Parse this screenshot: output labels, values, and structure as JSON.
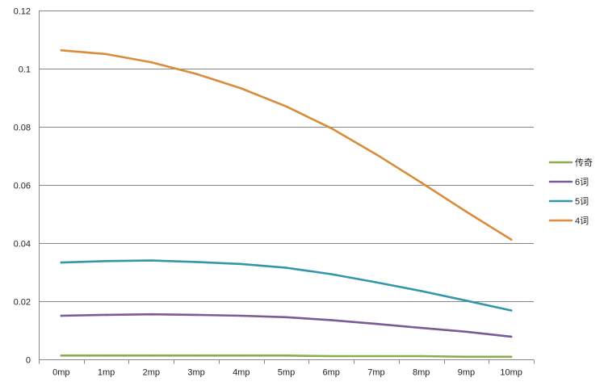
{
  "chart_data": {
    "type": "line",
    "title": "",
    "xlabel": "",
    "ylabel": "",
    "categories": [
      "0mp",
      "1mp",
      "2mp",
      "3mp",
      "4mp",
      "5mp",
      "6mp",
      "7mp",
      "8mp",
      "9mp",
      "10mp"
    ],
    "ylim": [
      0,
      0.12
    ],
    "yticks": [
      0,
      0.02,
      0.04,
      0.06,
      0.08,
      0.1,
      0.12
    ],
    "ytick_labels": [
      "0",
      "0.02",
      "0.04",
      "0.06",
      "0.08",
      "0.1",
      "0.12"
    ],
    "grid": true,
    "legend_position": "right",
    "series": [
      {
        "name": "传奇",
        "color": "#8aad4f",
        "values": [
          0.0013,
          0.0013,
          0.0013,
          0.0013,
          0.0013,
          0.0013,
          0.0011,
          0.0011,
          0.0011,
          0.0009,
          0.0009
        ]
      },
      {
        "name": "6词",
        "color": "#7a5a97",
        "values": [
          0.015,
          0.0153,
          0.0155,
          0.0153,
          0.015,
          0.0145,
          0.0135,
          0.0122,
          0.0108,
          0.0095,
          0.0078
        ]
      },
      {
        "name": "5词",
        "color": "#3497a9",
        "values": [
          0.0333,
          0.0338,
          0.034,
          0.0335,
          0.0328,
          0.0315,
          0.0293,
          0.0265,
          0.0235,
          0.0202,
          0.0168
        ]
      },
      {
        "name": "4词",
        "color": "#d88c3c",
        "values": [
          0.1063,
          0.105,
          0.1022,
          0.0982,
          0.0932,
          0.087,
          0.0795,
          0.0705,
          0.0608,
          0.0508,
          0.0412
        ]
      }
    ]
  }
}
